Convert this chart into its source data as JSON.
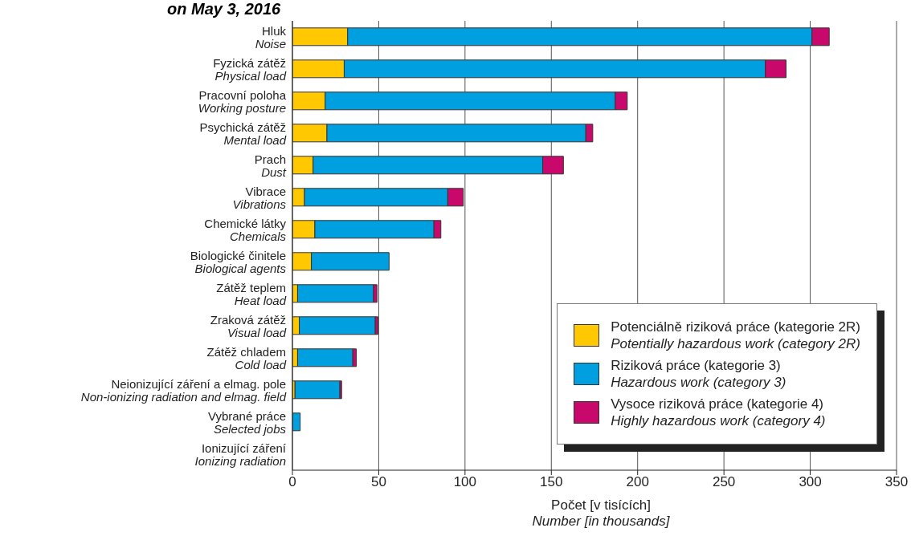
{
  "chart_data": {
    "type": "bar",
    "orientation": "horizontal",
    "stacked": true,
    "title": "on May 3, 2016",
    "xlabel": "Počet [v tisících]\nNumber [in thousands]",
    "categories": [
      "Hluk\nNoise",
      "Fyzická zátěž\nPhysical load",
      "Pracovní poloha\nWorking posture",
      "Psychická zátěž\nMental load",
      "Prach\nDust",
      "Vibrace\nVibrations",
      "Chemické látky\nChemicals",
      "Biologické činitele\nBiological agents",
      "Zátěž teplem\nHeat load",
      "Zraková zátěž\nVisual load",
      "Zátěž chladem\nCold load",
      "Neionizující záření a elmag. pole\nNon-ionizing radiation and elmag. field",
      "Vybrané práce\nSelected jobs",
      "Ionizující záření\nIonizing radiation"
    ],
    "series": [
      {
        "name": "Potenciálně riziková práce (kategorie 2R)\nPotentially hazardous work (category 2R)",
        "color": "#ffc800",
        "values": [
          32,
          30,
          19,
          20,
          12,
          7,
          13,
          11,
          3,
          4,
          3,
          1.5,
          0,
          0
        ]
      },
      {
        "name": "Riziková práce (kategorie 3)\nHazardous work (category 3)",
        "color": "#00a0e0",
        "values": [
          269,
          244,
          168,
          150,
          133,
          83,
          69,
          45,
          44,
          44,
          32,
          26,
          4.5,
          0
        ]
      },
      {
        "name": "Vysoce riziková práce (kategorie 4)\nHighly hazardous work (category 4)",
        "color": "#c8096b",
        "values": [
          10,
          12,
          7,
          4,
          12,
          9,
          4,
          0,
          2,
          1.5,
          2,
          1,
          0,
          0
        ]
      }
    ],
    "xlim": [
      0,
      350
    ],
    "xticks": [
      0,
      50,
      100,
      150,
      200,
      250,
      300,
      350
    ],
    "grid": "x",
    "legend": "bottom right"
  }
}
